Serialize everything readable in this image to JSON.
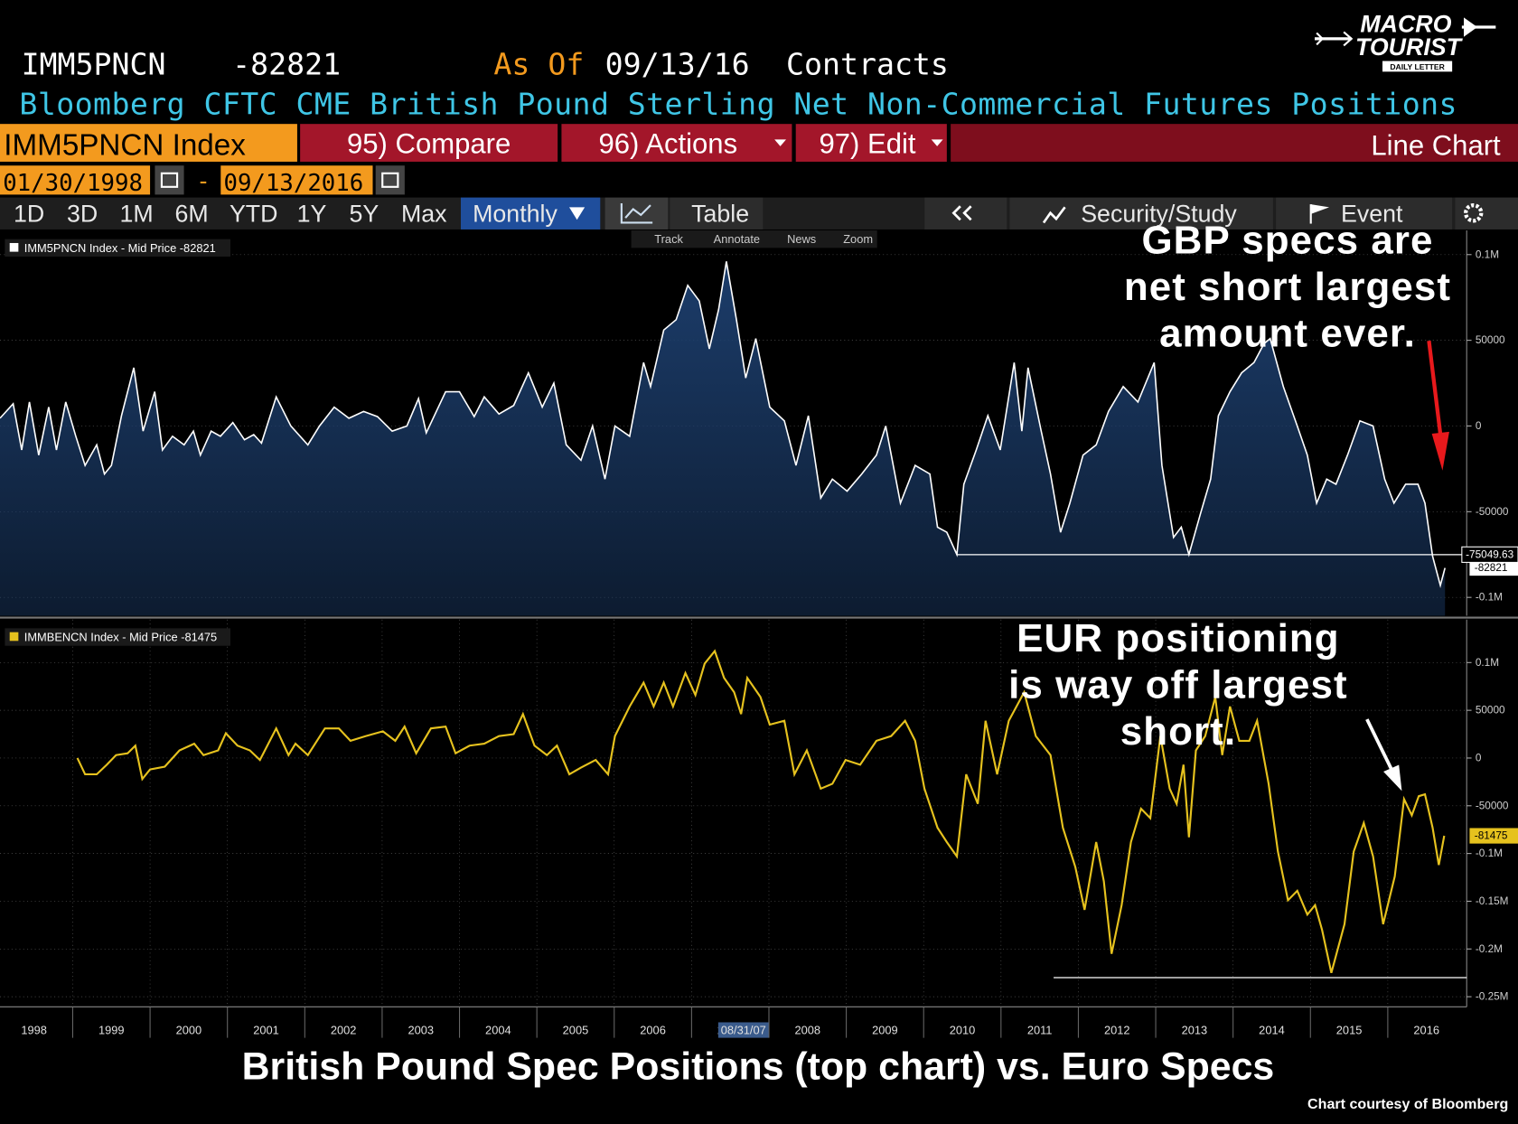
{
  "header": {
    "ticker": "IMM5PNCN",
    "last": -82821,
    "as_of_label": "As Of",
    "as_of": "09/13/16",
    "units": "Contracts",
    "description": "Bloomberg CFTC CME British Pound Sterling Net Non-Commercial Futures Positions"
  },
  "logo": {
    "line1": "MACRO",
    "line2": "TOURIST",
    "line3": "DAILY LETTER"
  },
  "toolbar": {
    "security": "IMM5PNCN Index",
    "buttons": [
      "95) Compare",
      "96) Actions",
      "97) Edit"
    ],
    "view": "Line Chart",
    "start_date": "01/30/1998",
    "date_separator": "-",
    "end_date": "09/13/2016",
    "ranges": [
      "1D",
      "3D",
      "1M",
      "6M",
      "YTD",
      "1Y",
      "5Y",
      "Max"
    ],
    "frequency": "Monthly",
    "table": "Table",
    "study": "Security/Study",
    "event": "Event",
    "tools": [
      "Track",
      "Annotate",
      "News",
      "Zoom"
    ]
  },
  "chart_data": [
    {
      "type": "area",
      "grid": true,
      "area_color": "#1c3d6b",
      "annotation": [
        "GBP specs are",
        "net short largest",
        "amount ever."
      ],
      "xlim": [
        1998.06,
        2017.02
      ],
      "ylim": [
        -110700,
        114100
      ],
      "yticks": [
        {
          "value": 100000,
          "label": "0.1M"
        },
        50000,
        0,
        -50000,
        {
          "value": -100000,
          "label": "-0.1M"
        }
      ],
      "hline": {
        "y": -75049.63,
        "x_start": 2010.43,
        "tagged": true
      },
      "x": [
        1998.06,
        1998.23,
        1998.34,
        1998.44,
        1998.56,
        1998.69,
        1998.79,
        1998.91,
        1999.04,
        1999.16,
        1999.31,
        1999.41,
        1999.5,
        1999.63,
        1999.79,
        1999.91,
        2000.06,
        2000.16,
        2000.29,
        2000.44,
        2000.56,
        2000.65,
        2000.79,
        2000.91,
        2001.07,
        2001.22,
        2001.34,
        2001.44,
        2001.63,
        2001.82,
        2002.04,
        2002.19,
        2002.38,
        2002.57,
        2002.76,
        2002.94,
        2003.13,
        2003.32,
        2003.47,
        2003.57,
        2003.82,
        2004,
        2004.19,
        2004.32,
        2004.51,
        2004.7,
        2004.89,
        2005.07,
        2005.22,
        2005.38,
        2005.57,
        2005.72,
        2005.88,
        2006.01,
        2006.2,
        2006.38,
        2006.47,
        2006.64,
        2006.8,
        2006.95,
        2007.1,
        2007.23,
        2007.35,
        2007.45,
        2007.58,
        2007.7,
        2007.83,
        2008.01,
        2008.2,
        2008.35,
        2008.51,
        2008.67,
        2008.82,
        2009.01,
        2009.2,
        2009.39,
        2009.51,
        2009.7,
        2009.89,
        2010.08,
        2010.18,
        2010.3,
        2010.43,
        2010.52,
        2010.68,
        2010.83,
        2010.99,
        2011.17,
        2011.27,
        2011.35,
        2011.52,
        2011.64,
        2011.77,
        2011.89,
        2012.06,
        2012.23,
        2012.39,
        2012.58,
        2012.77,
        2012.98,
        2013.08,
        2013.23,
        2013.33,
        2013.43,
        2013.58,
        2013.71,
        2013.81,
        2013.96,
        2014.11,
        2014.27,
        2014.4,
        2014.48,
        2014.65,
        2014.83,
        2014.96,
        2015.08,
        2015.21,
        2015.33,
        2015.48,
        2015.64,
        2015.81,
        2015.96,
        2016.08,
        2016.23,
        2016.39,
        2016.48,
        2016.58,
        2016.68,
        2016.74
      ],
      "series": [
        {
          "name": "IMM5PNCN Index - Mid Price -82821",
          "color": "#ffffff",
          "values": [
            4500,
            13000,
            -14000,
            14000,
            -17000,
            11000,
            -14000,
            14000,
            -6000,
            -23000,
            -11000,
            -28000,
            -23000,
            6000,
            34000,
            -3000,
            20000,
            -14000,
            -6000,
            -11000,
            -3000,
            -17000,
            -3000,
            -6000,
            2000,
            -8000,
            -5000,
            -10000,
            17000,
            0,
            -11000,
            0,
            11000,
            4500,
            8500,
            5500,
            -3000,
            0,
            16000,
            -4000,
            20000,
            20000,
            5500,
            17000,
            7000,
            12000,
            31000,
            11000,
            25000,
            -11000,
            -20000,
            0,
            -31000,
            0,
            -6000,
            37000,
            23000,
            56000,
            62000,
            82000,
            73000,
            45000,
            68000,
            96000,
            62000,
            28000,
            51000,
            11000,
            3000,
            -23000,
            6000,
            -42000,
            -31000,
            -38000,
            -28000,
            -17000,
            0,
            -45000,
            -23000,
            -28000,
            -59000,
            -62000,
            -75000,
            -34000,
            -14000,
            6000,
            -14000,
            37000,
            -3000,
            34000,
            -3000,
            -28000,
            -62000,
            -45000,
            -17000,
            -11000,
            8500,
            23000,
            14000,
            37000,
            -23000,
            -65000,
            -59000,
            -75000,
            -51000,
            -31000,
            6000,
            20000,
            31000,
            37000,
            48000,
            51000,
            23000,
            0,
            -17000,
            -45000,
            -31000,
            -34000,
            -17000,
            3000,
            0,
            -31000,
            -45000,
            -34000,
            -34000,
            -45000,
            -76000,
            -93000,
            -82821
          ]
        }
      ]
    },
    {
      "type": "line",
      "grid": true,
      "annotation": [
        "EUR positioning",
        "is way off largest",
        "short."
      ],
      "xlim": [
        1998.06,
        2017.02
      ],
      "ylim": [
        -260600,
        145000
      ],
      "yticks": [
        {
          "value": 100000,
          "label": "0.1M"
        },
        50000,
        0,
        -50000,
        {
          "value": -100000,
          "label": "-0.1M"
        },
        {
          "value": -150000,
          "label": "-0.15M"
        },
        {
          "value": -200000,
          "label": "-0.2M"
        },
        {
          "value": -250000,
          "label": "-0.25M"
        }
      ],
      "xticks": [
        1998,
        1999,
        2000,
        2001,
        2002,
        2003,
        2004,
        2005,
        2006,
        2007,
        2008,
        2009,
        2010,
        2011,
        2012,
        2013,
        2014,
        2015,
        2016
      ],
      "cursor": {
        "x": 2007.67,
        "label": "08/31/07"
      },
      "hline": {
        "y": -230000,
        "x_start": 2011.68,
        "tagged": false
      },
      "x": [
        1999.06,
        1999.16,
        1999.31,
        1999.44,
        1999.56,
        1999.71,
        1999.81,
        1999.9,
        2000,
        2000.19,
        2000.38,
        2000.57,
        2000.69,
        2000.88,
        2000.98,
        2001.13,
        2001.29,
        2001.42,
        2001.63,
        2001.79,
        2001.88,
        2002.04,
        2002.26,
        2002.44,
        2002.59,
        2002.79,
        2003.01,
        2003.17,
        2003.29,
        2003.44,
        2003.63,
        2003.82,
        2003.95,
        2004.13,
        2004.32,
        2004.51,
        2004.7,
        2004.82,
        2004.97,
        2005.13,
        2005.26,
        2005.42,
        2005.57,
        2005.76,
        2005.92,
        2006.01,
        2006.2,
        2006.38,
        2006.51,
        2006.64,
        2006.76,
        2006.92,
        2007.05,
        2007.17,
        2007.3,
        2007.42,
        2007.55,
        2007.64,
        2007.72,
        2007.89,
        2008.01,
        2008.2,
        2008.33,
        2008.49,
        2008.67,
        2008.82,
        2008.99,
        2009.18,
        2009.39,
        2009.58,
        2009.76,
        2009.89,
        2010.01,
        2010.18,
        2010.3,
        2010.43,
        2010.55,
        2010.7,
        2010.8,
        2010.95,
        2011.1,
        2011.3,
        2011.45,
        2011.64,
        2011.8,
        2011.96,
        2012.08,
        2012.23,
        2012.33,
        2012.43,
        2012.56,
        2012.68,
        2012.81,
        2012.93,
        2013.06,
        2013.18,
        2013.27,
        2013.36,
        2013.43,
        2013.52,
        2013.64,
        2013.77,
        2013.86,
        2013.96,
        2014.08,
        2014.21,
        2014.31,
        2014.46,
        2014.58,
        2014.71,
        2014.83,
        2014.96,
        2015.06,
        2015.15,
        2015.27,
        2015.44,
        2015.56,
        2015.69,
        2015.81,
        2015.94,
        2016.09,
        2016.21,
        2016.31,
        2016.4,
        2016.48,
        2016.58,
        2016.66,
        2016.73
      ],
      "series": [
        {
          "name": "IMMBENCN Index - Mid Price -81475",
          "color": "#e6c21e",
          "values": [
            0,
            -17000,
            -17000,
            -7000,
            3000,
            5000,
            13000,
            -22000,
            -12000,
            -9000,
            8000,
            15000,
            3000,
            8000,
            26000,
            13000,
            8000,
            -2000,
            31000,
            3000,
            15000,
            3000,
            31000,
            31000,
            18000,
            23000,
            28000,
            18000,
            33000,
            5000,
            31000,
            33000,
            5000,
            13000,
            15000,
            23000,
            25000,
            46000,
            13000,
            3000,
            13000,
            -17000,
            -10000,
            -2000,
            -17000,
            23000,
            54000,
            79000,
            54000,
            79000,
            54000,
            89000,
            66000,
            99000,
            112000,
            84000,
            69000,
            46000,
            84000,
            64000,
            35000,
            39000,
            -17000,
            8000,
            -32000,
            -27000,
            -2000,
            -7000,
            18000,
            23000,
            39000,
            18000,
            -32000,
            -73000,
            -88000,
            -103000,
            -17000,
            -48000,
            39000,
            -17000,
            39000,
            69000,
            23000,
            3000,
            -73000,
            -114000,
            -159000,
            -88000,
            -129000,
            -205000,
            -154000,
            -88000,
            -53000,
            -63000,
            23000,
            -32000,
            -48000,
            -7000,
            -83000,
            8000,
            23000,
            64000,
            3000,
            54000,
            18000,
            18000,
            39000,
            -27000,
            -98000,
            -149000,
            -139000,
            -164000,
            -154000,
            -180000,
            -225000,
            -174000,
            -98000,
            -68000,
            -103000,
            -174000,
            -124000,
            -43000,
            -60000,
            -40000,
            -38000,
            -73000,
            -112000,
            -81475
          ]
        }
      ]
    }
  ],
  "caption": "British Pound Spec Positions (top chart) vs. Euro Specs",
  "credit": "Chart courtesy of Bloomberg"
}
